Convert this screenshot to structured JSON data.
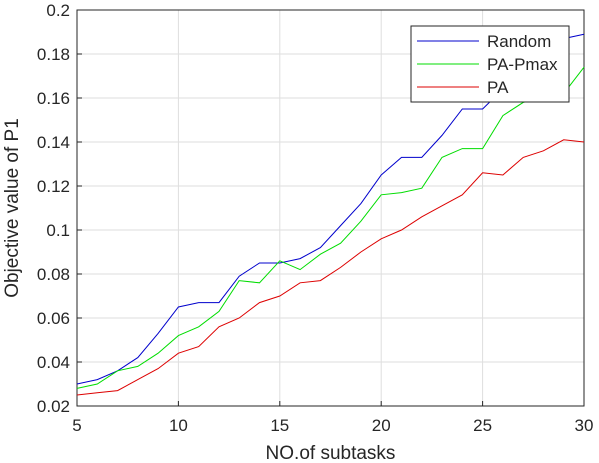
{
  "chart_data": {
    "type": "line",
    "xlabel": "NO.of subtasks",
    "ylabel": "Objective value of P1",
    "xlim": [
      5,
      30
    ],
    "ylim": [
      0.02,
      0.2
    ],
    "xticks": [
      5,
      10,
      15,
      20,
      25,
      30
    ],
    "yticks": [
      0.02,
      0.04,
      0.06,
      0.08,
      0.1,
      0.12,
      0.14,
      0.16,
      0.18,
      0.2
    ],
    "ytick_labels": [
      "0.02",
      "0.04",
      "0.06",
      "0.08",
      "0.1",
      "0.12",
      "0.14",
      "0.16",
      "0.18",
      "0.2"
    ],
    "grid": true,
    "legend_position": "top-right",
    "x": [
      5,
      6,
      7,
      8,
      9,
      10,
      11,
      12,
      13,
      14,
      15,
      16,
      17,
      18,
      19,
      20,
      21,
      22,
      23,
      24,
      25,
      26,
      27,
      28,
      29,
      30
    ],
    "series": [
      {
        "name": "Random",
        "color": "#0000cc",
        "values": [
          0.03,
          0.032,
          0.036,
          0.042,
          0.053,
          0.065,
          0.067,
          0.067,
          0.079,
          0.085,
          0.085,
          0.087,
          0.092,
          0.102,
          0.112,
          0.125,
          0.133,
          0.133,
          0.143,
          0.155,
          0.155,
          0.164,
          0.17,
          0.179,
          0.187,
          0.189
        ]
      },
      {
        "name": "PA-Pmax",
        "color": "#00dd00",
        "values": [
          0.028,
          0.03,
          0.036,
          0.038,
          0.044,
          0.052,
          0.056,
          0.063,
          0.077,
          0.076,
          0.086,
          0.082,
          0.089,
          0.094,
          0.104,
          0.116,
          0.117,
          0.119,
          0.133,
          0.137,
          0.137,
          0.152,
          0.158,
          0.16,
          0.162,
          0.174
        ]
      },
      {
        "name": "PA",
        "color": "#dd0000",
        "values": [
          0.025,
          0.026,
          0.027,
          0.032,
          0.037,
          0.044,
          0.047,
          0.056,
          0.06,
          0.067,
          0.07,
          0.076,
          0.077,
          0.083,
          0.09,
          0.096,
          0.1,
          0.106,
          0.111,
          0.116,
          0.126,
          0.125,
          0.133,
          0.136,
          0.141,
          0.14
        ]
      }
    ]
  }
}
